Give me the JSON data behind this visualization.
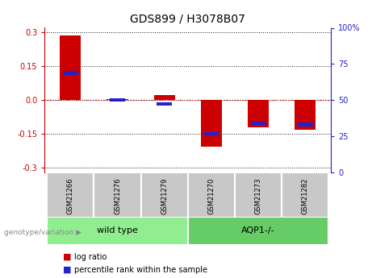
{
  "title": "GDS899 / H3078B07",
  "samples": [
    "GSM21266",
    "GSM21276",
    "GSM21279",
    "GSM21270",
    "GSM21273",
    "GSM21282"
  ],
  "log_ratios": [
    0.285,
    0.005,
    0.022,
    -0.205,
    -0.12,
    -0.13
  ],
  "percentile_ranks": [
    70,
    50,
    47,
    25,
    33,
    32
  ],
  "group_spans": [
    [
      0,
      2,
      "wild type",
      "#90EE90"
    ],
    [
      3,
      5,
      "AQP1-/-",
      "#66CC66"
    ]
  ],
  "bar_color_red": "#CC0000",
  "bar_color_blue": "#2222CC",
  "ylim": [
    -0.32,
    0.32
  ],
  "yticks_left": [
    -0.3,
    -0.15,
    0.0,
    0.15,
    0.3
  ],
  "yticks_right": [
    0,
    25,
    50,
    75,
    100
  ],
  "zero_line_color": "#CC0000",
  "dotted_line_color": "#222222",
  "bar_width": 0.45,
  "blue_bar_width": 0.32,
  "blue_bar_height": 0.016,
  "legend_red_label": "log ratio",
  "legend_blue_label": "percentile rank within the sample",
  "genotype_label": "genotype/variation",
  "sample_box_color": "#C8C8C8",
  "background_color": "#ffffff"
}
